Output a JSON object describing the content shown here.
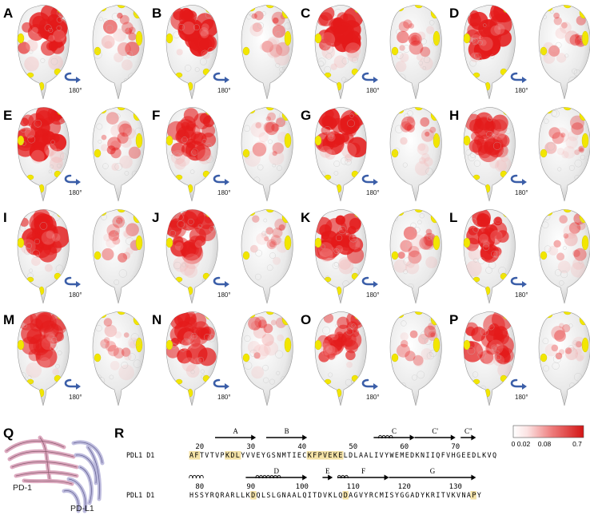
{
  "panels": {
    "labels": [
      "A",
      "B",
      "C",
      "D",
      "E",
      "F",
      "G",
      "H",
      "I",
      "J",
      "K",
      "L",
      "M",
      "N",
      "O",
      "P"
    ],
    "rotation_label": "180°"
  },
  "panel_q": {
    "label": "Q",
    "molecule_1": "PD-1",
    "molecule_2": "PD-L1"
  },
  "panel_r": {
    "label": "R",
    "row1": {
      "name": "PDL1 D1",
      "sequence": "AFTVTVPKDLYVVEYGSNMTIECKFPVEKELDLAALIVYWEMEDKNIIQFVHGEEDLKVQ",
      "numbers": [
        "20",
        "30",
        "40",
        "50",
        "60",
        "70"
      ],
      "strands": [
        "A",
        "B",
        "C",
        "C'",
        "C\""
      ]
    },
    "row2": {
      "name": "PDL1 D1",
      "sequence": "HSSYRQRARLLKDQLSLGNAALQITDVKLQDAGVYRCMISYGGADYKRITVKVNAPY",
      "numbers": [
        "80",
        "90",
        "100",
        "110",
        "120",
        "130"
      ],
      "strands": [
        "D",
        "E",
        "F",
        "G"
      ]
    }
  },
  "color_scale": {
    "ticks": [
      "0",
      "0.02",
      "0.08",
      "0.7"
    ],
    "colors": [
      "#ffffff",
      "#f7c6c6",
      "#ea5a5a",
      "#d71818"
    ]
  },
  "colors": {
    "surface": "#eeeeee",
    "hot": "#e41a1a",
    "yellow": "#f2e600",
    "highlight": "#f4e2a6",
    "arrow_blue": "#3b5ea8"
  }
}
